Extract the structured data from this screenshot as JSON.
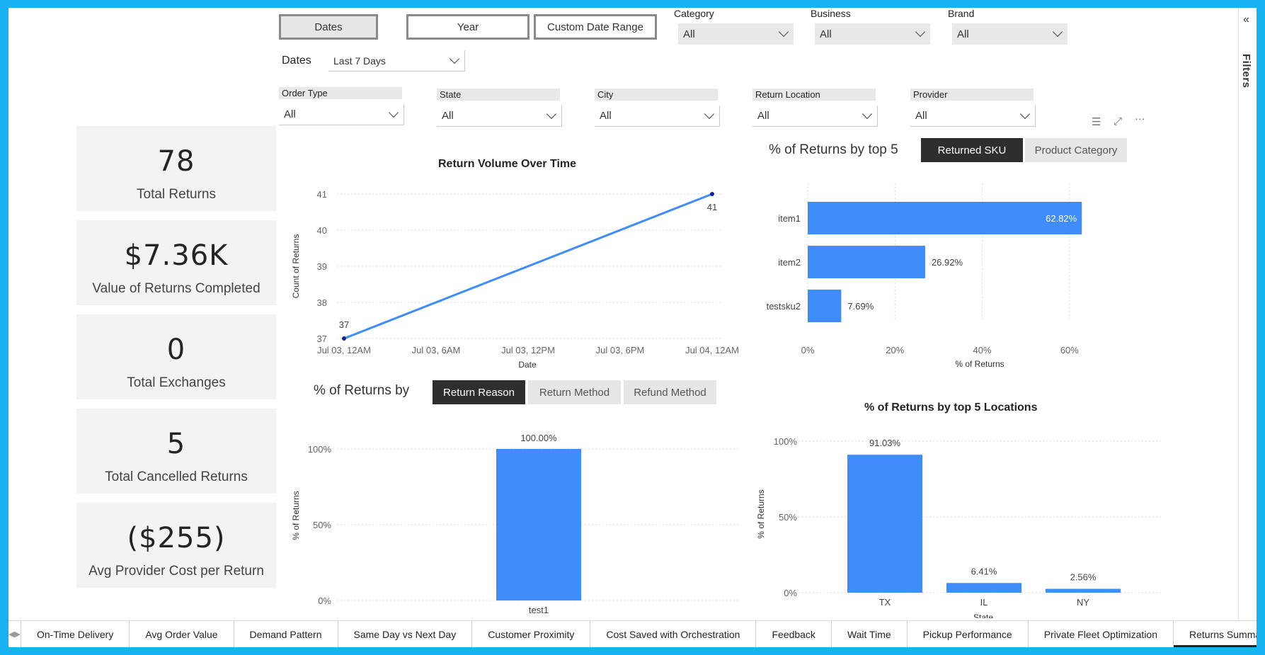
{
  "date_buttons": [
    "Dates",
    "Year",
    "Custom Date Range"
  ],
  "top_slicers": [
    {
      "label": "Category",
      "value": "All"
    },
    {
      "label": "Business",
      "value": "All"
    },
    {
      "label": "Brand",
      "value": "All"
    }
  ],
  "dates_slicer": {
    "label": "Dates",
    "value": "Last 7 Days"
  },
  "filter_slicers": [
    {
      "label": "Order Type",
      "value": "All"
    },
    {
      "label": "State",
      "value": "All"
    },
    {
      "label": "City",
      "value": "All"
    },
    {
      "label": "Return Location",
      "value": "All"
    },
    {
      "label": "Provider",
      "value": "All"
    }
  ],
  "kpis": [
    {
      "value": "78",
      "label": "Total Returns"
    },
    {
      "value": "$7.36K",
      "label": "Value of Returns Completed"
    },
    {
      "value": "0",
      "label": "Total Exchanges"
    },
    {
      "value": "5",
      "label": "Total Cancelled Returns"
    },
    {
      "value": "($255)",
      "label": "Avg Provider Cost per Return"
    }
  ],
  "top5_header": {
    "title": "% of Returns by top 5",
    "toggles": [
      "Returned SKU",
      "Product Category"
    ],
    "active": 0
  },
  "by_header": {
    "title": "% of Returns by",
    "toggles": [
      "Return Reason",
      "Return Method",
      "Refund Method"
    ],
    "active": 0
  },
  "filters_pane": {
    "label": "Filters",
    "collapse_icon": "double-chevron-icon"
  },
  "tabs": [
    "On-Time Delivery",
    "Avg Order Value",
    "Demand Pattern",
    "Same Day vs Next Day",
    "Customer Proximity",
    "Cost Saved with Orchestration",
    "Feedback",
    "Wait Time",
    "Pickup Performance",
    "Private Fleet Optimization",
    "Returns Summary"
  ],
  "active_tab": "Returns Summary",
  "colors": {
    "bar": "#418cfb",
    "line": "#418cfb",
    "marker": "#12239e",
    "toggle_on": "#2e2e2e",
    "frame": "#16b3f0"
  },
  "chart_data": [
    {
      "id": "line",
      "type": "line",
      "title": "Return Volume Over Time",
      "xlabel": "Date",
      "ylabel": "Count of Returns",
      "x_ticks": [
        "Jul 03, 12AM",
        "Jul 03, 6AM",
        "Jul 03, 12PM",
        "Jul 03, 6PM",
        "Jul 04, 12AM"
      ],
      "y_ticks": [
        "37",
        "38",
        "39",
        "40",
        "41"
      ],
      "ylim": [
        37,
        41
      ],
      "points": [
        {
          "x": "Jul 03, 12AM",
          "y": 37,
          "label": "37"
        },
        {
          "x": "Jul 04, 12AM",
          "y": 41,
          "label": "41"
        }
      ]
    },
    {
      "id": "sku",
      "type": "bar",
      "orientation": "horizontal",
      "categories": [
        "item1",
        "item2",
        "testsku2"
      ],
      "values": [
        62.82,
        26.92,
        7.69
      ],
      "labels": [
        "62.82%",
        "26.92%",
        "7.69%"
      ],
      "xlabel": "% of Returns",
      "x_ticks": [
        "0%",
        "20%",
        "40%",
        "60%"
      ],
      "xlim": [
        0,
        67
      ]
    },
    {
      "id": "reason",
      "type": "bar",
      "categories": [
        "test1"
      ],
      "values": [
        100
      ],
      "labels": [
        "100.00%"
      ],
      "ylabel": "% of Returns",
      "y_ticks": [
        "0%",
        "50%",
        "100%"
      ],
      "ylim": [
        0,
        100
      ]
    },
    {
      "id": "locations",
      "type": "bar",
      "title": "% of Returns by top 5 Locations",
      "categories": [
        "TX",
        "IL",
        "NY"
      ],
      "values": [
        91.03,
        6.41,
        2.56
      ],
      "labels": [
        "91.03%",
        "6.41%",
        "2.56%"
      ],
      "xlabel": "State",
      "ylabel": "% of Returns",
      "y_ticks": [
        "0%",
        "50%",
        "100%"
      ],
      "ylim": [
        0,
        100
      ]
    }
  ]
}
